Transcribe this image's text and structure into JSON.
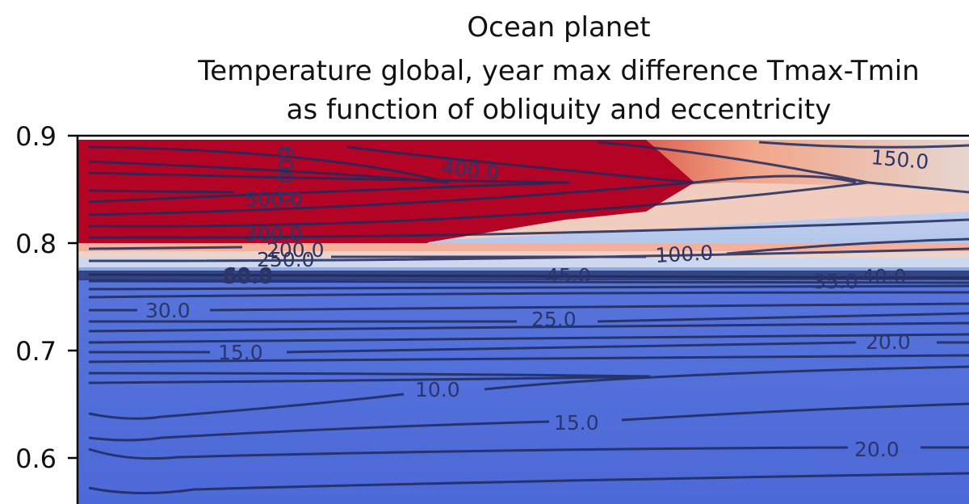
{
  "chart_data": {
    "type": "heatmap",
    "title": "Ocean planet",
    "subtitle_line1": "Temperature global, year max difference Tmax-Tmin",
    "subtitle_line2": "as function of  obliquity and eccentricity",
    "xlabel": "",
    "ylabel": "",
    "ylim": [
      0.55,
      0.9
    ],
    "y_ticks": [
      "0.9",
      "0.8",
      "0.7",
      "0.6"
    ],
    "colormap": "coolwarm",
    "colors": {
      "cold": "#4a66d8",
      "neutral": "#dfe4ee",
      "hot": "#b40426",
      "contour": "#1f2a5c"
    },
    "contour_labels": [
      "400.0",
      "500.0",
      "300.0",
      "200.0",
      "250.0",
      "600.0",
      "150.0",
      "100.0",
      "45.0",
      "60.0",
      "50.0",
      "35.0",
      "40.0",
      "30.0",
      "25.0",
      "15.0",
      "20.0",
      "10.0",
      "15.0",
      "20.0"
    ]
  }
}
